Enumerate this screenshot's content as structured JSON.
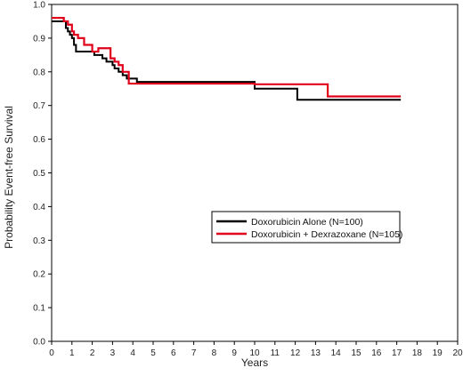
{
  "chart_data": {
    "type": "line",
    "title": "",
    "xlabel": "Years",
    "ylabel": "Probability Event-free Survival",
    "xlim": [
      0,
      20
    ],
    "ylim": [
      0.0,
      1.0
    ],
    "x_ticks": [
      "0",
      "1",
      "2",
      "3",
      "4",
      "5",
      "6",
      "7",
      "8",
      "9",
      "10",
      "11",
      "12",
      "13",
      "14",
      "15",
      "16",
      "17",
      "18",
      "19",
      "20"
    ],
    "y_ticks": [
      "0.0",
      "0.1",
      "0.2",
      "0.3",
      "0.4",
      "0.5",
      "0.6",
      "0.7",
      "0.8",
      "0.9",
      "1.0"
    ],
    "grid": false,
    "legend_position": "middle-right",
    "series": [
      {
        "name": "Doxorubicin Alone (N=100)",
        "color": "#000000",
        "step": true,
        "x": [
          0,
          0.5,
          0.7,
          0.8,
          0.9,
          1.0,
          1.1,
          1.2,
          1.9,
          2.1,
          2.5,
          2.7,
          3.0,
          3.1,
          3.3,
          3.5,
          3.7,
          4.2,
          10.0,
          12.1,
          17.2
        ],
        "y": [
          0.95,
          0.95,
          0.93,
          0.92,
          0.91,
          0.9,
          0.88,
          0.86,
          0.86,
          0.85,
          0.84,
          0.83,
          0.82,
          0.81,
          0.8,
          0.79,
          0.78,
          0.77,
          0.75,
          0.717,
          0.717
        ]
      },
      {
        "name": "Doxorubicin + Dexrazoxane (N=105)",
        "color": "#e0001b",
        "step": true,
        "x": [
          0,
          0.6,
          0.8,
          1.0,
          1.1,
          1.3,
          1.6,
          2.0,
          2.3,
          2.9,
          3.1,
          3.3,
          3.5,
          3.8,
          4.5,
          10.0,
          13.6,
          17.2
        ],
        "y": [
          0.96,
          0.95,
          0.94,
          0.92,
          0.91,
          0.9,
          0.88,
          0.86,
          0.87,
          0.84,
          0.83,
          0.82,
          0.8,
          0.765,
          0.765,
          0.763,
          0.727,
          0.727
        ]
      }
    ]
  }
}
